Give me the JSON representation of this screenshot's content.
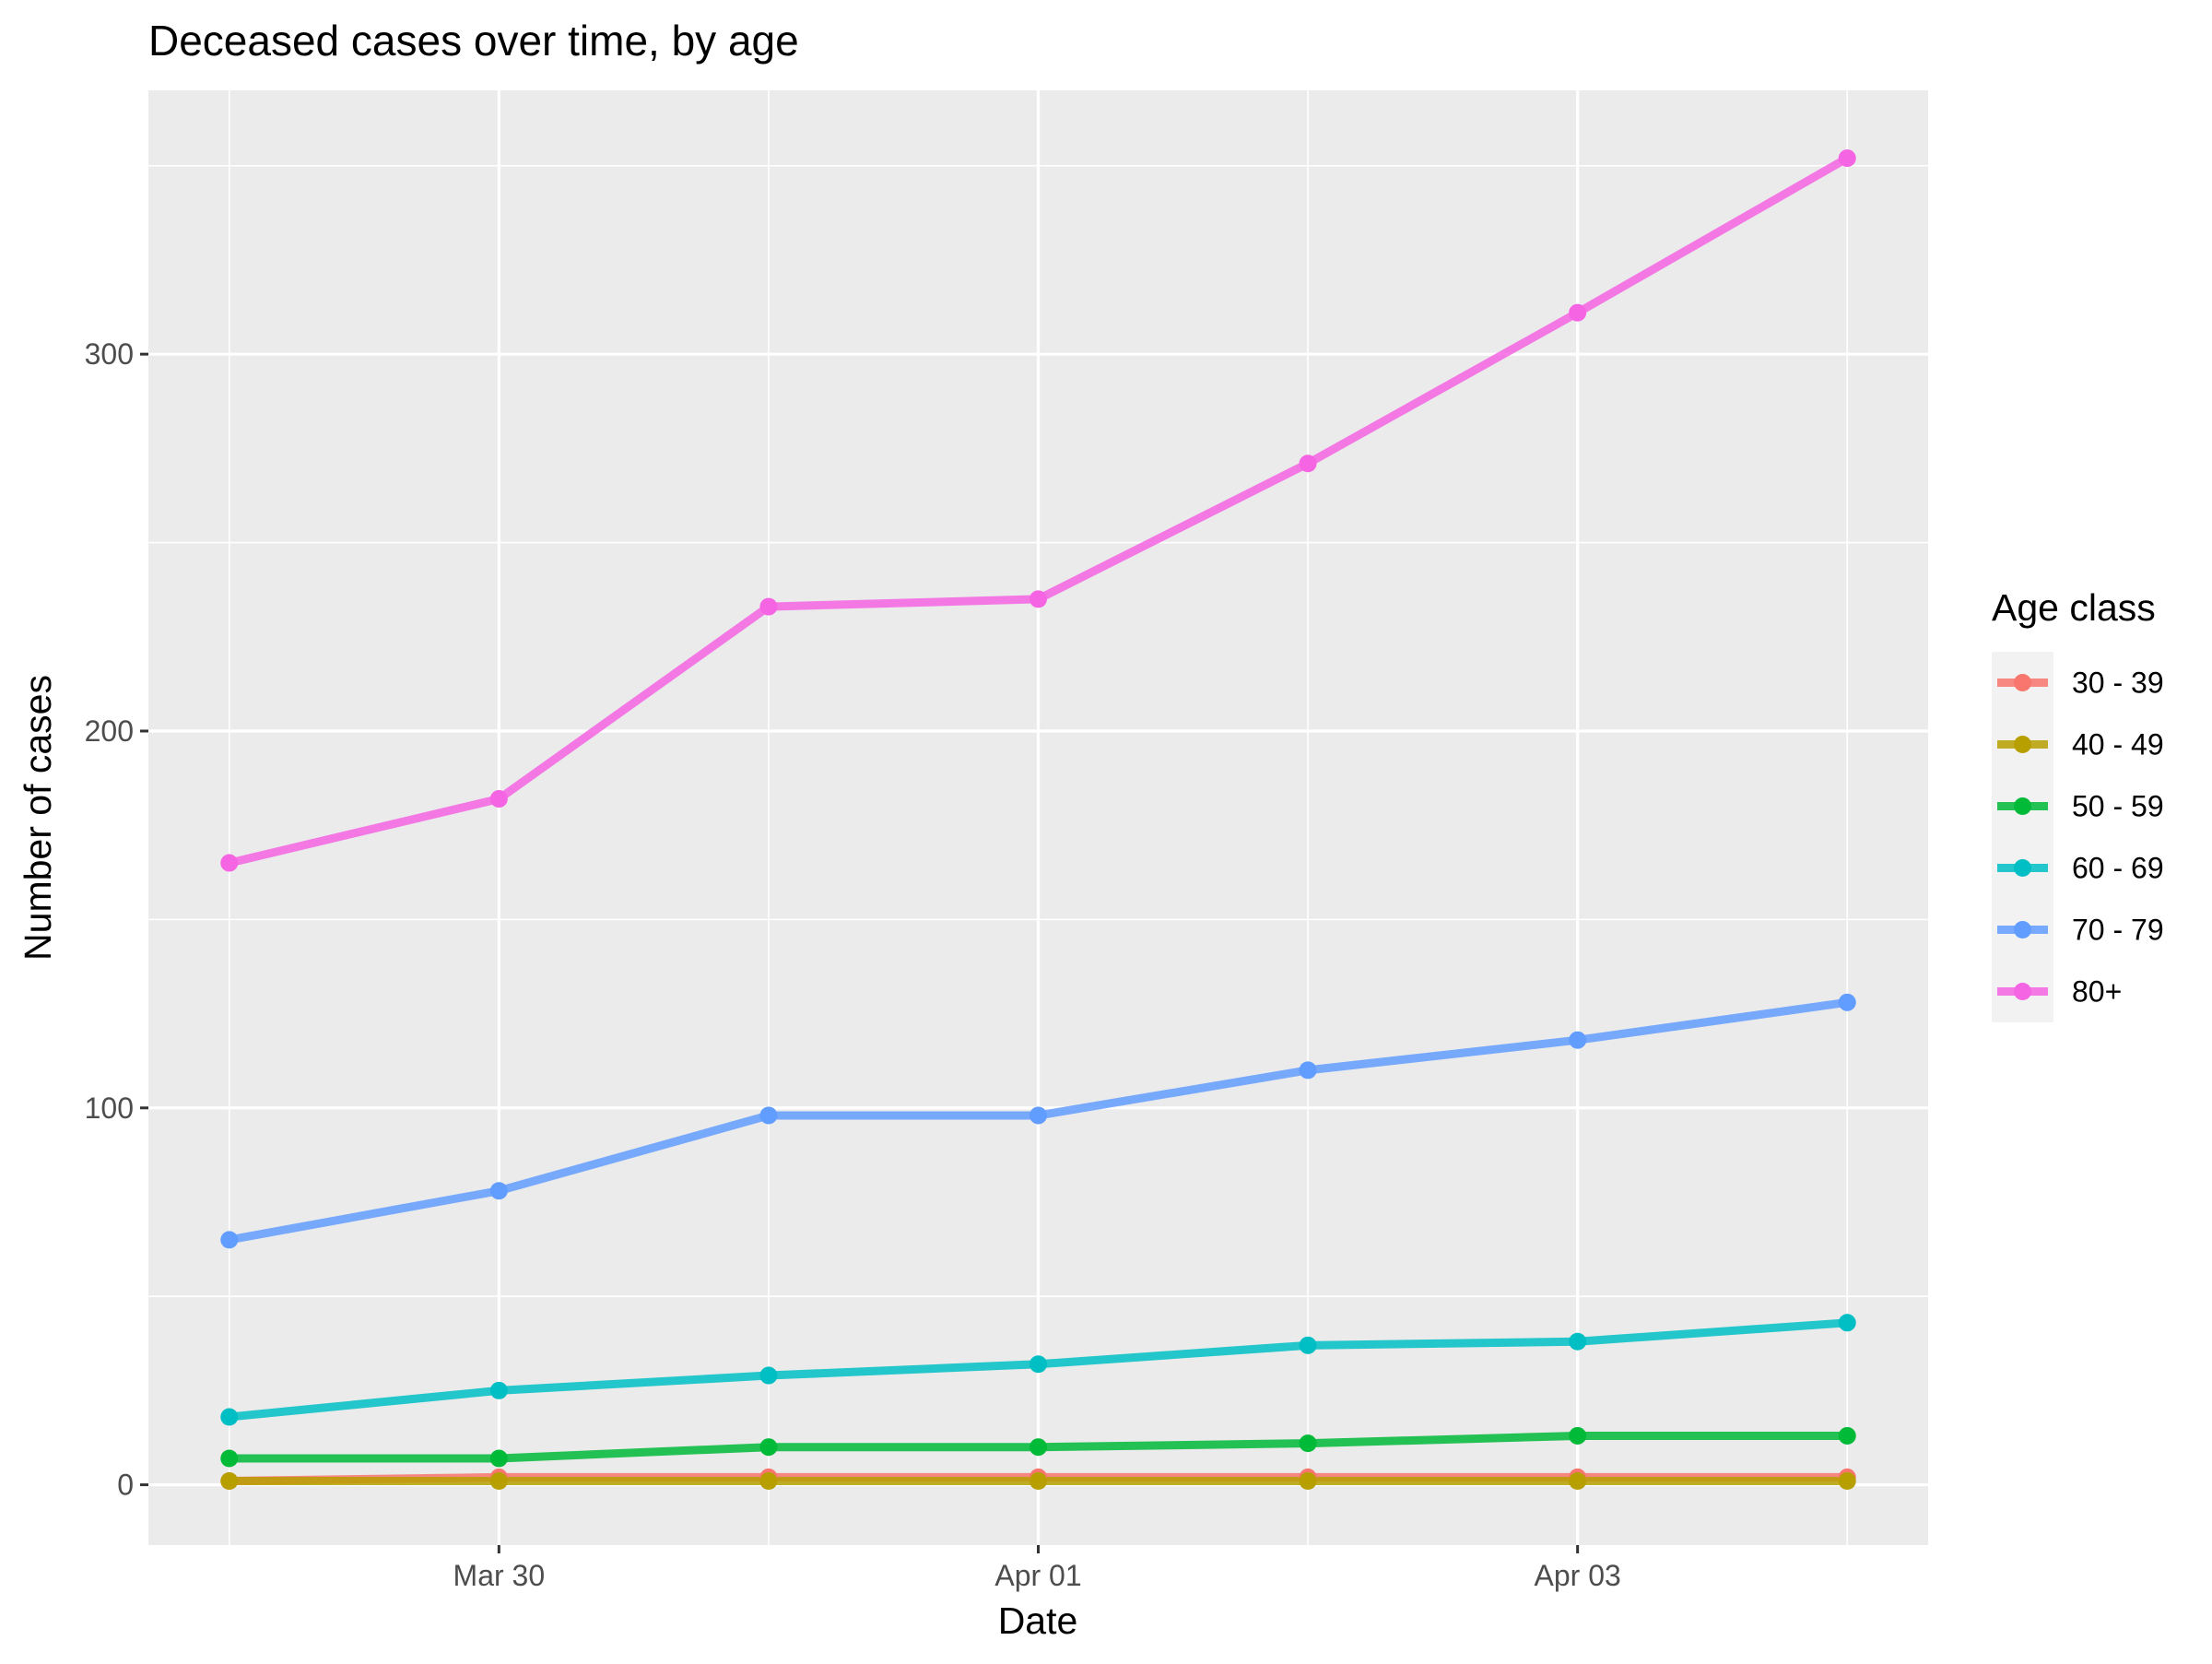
{
  "chart_data": {
    "type": "line",
    "title": "Deceased cases over time, by age",
    "xlabel": "Date",
    "ylabel": "Number of cases",
    "x": [
      "2020-03-29",
      "2020-03-30",
      "2020-03-31",
      "2020-04-01",
      "2020-04-02",
      "2020-04-03",
      "2020-04-04"
    ],
    "x_ticks": [
      {
        "value": "2020-03-30",
        "label": "Mar 30"
      },
      {
        "value": "2020-04-01",
        "label": "Apr 01"
      },
      {
        "value": "2020-04-03",
        "label": "Apr 03"
      }
    ],
    "y_ticks": [
      0,
      100,
      200,
      300
    ],
    "ylim": [
      -16,
      370
    ],
    "grid": true,
    "legend": {
      "title": "Age class",
      "placement": "right"
    },
    "series": [
      {
        "name": "30 - 39",
        "color": "#F8766D",
        "values": [
          1,
          2,
          2,
          2,
          2,
          2,
          2
        ]
      },
      {
        "name": "40 - 49",
        "color": "#B79F00",
        "values": [
          1,
          1,
          1,
          1,
          1,
          1,
          1
        ]
      },
      {
        "name": "50 - 59",
        "color": "#00BA38",
        "values": [
          7,
          7,
          10,
          10,
          11,
          13,
          13
        ]
      },
      {
        "name": "60 - 69",
        "color": "#00BFC4",
        "values": [
          18,
          25,
          29,
          32,
          37,
          38,
          43
        ]
      },
      {
        "name": "70 - 79",
        "color": "#619CFF",
        "values": [
          65,
          78,
          98,
          98,
          110,
          118,
          128
        ]
      },
      {
        "name": "80+",
        "color": "#F564E3",
        "values": [
          165,
          182,
          233,
          235,
          271,
          311,
          352
        ]
      }
    ]
  }
}
